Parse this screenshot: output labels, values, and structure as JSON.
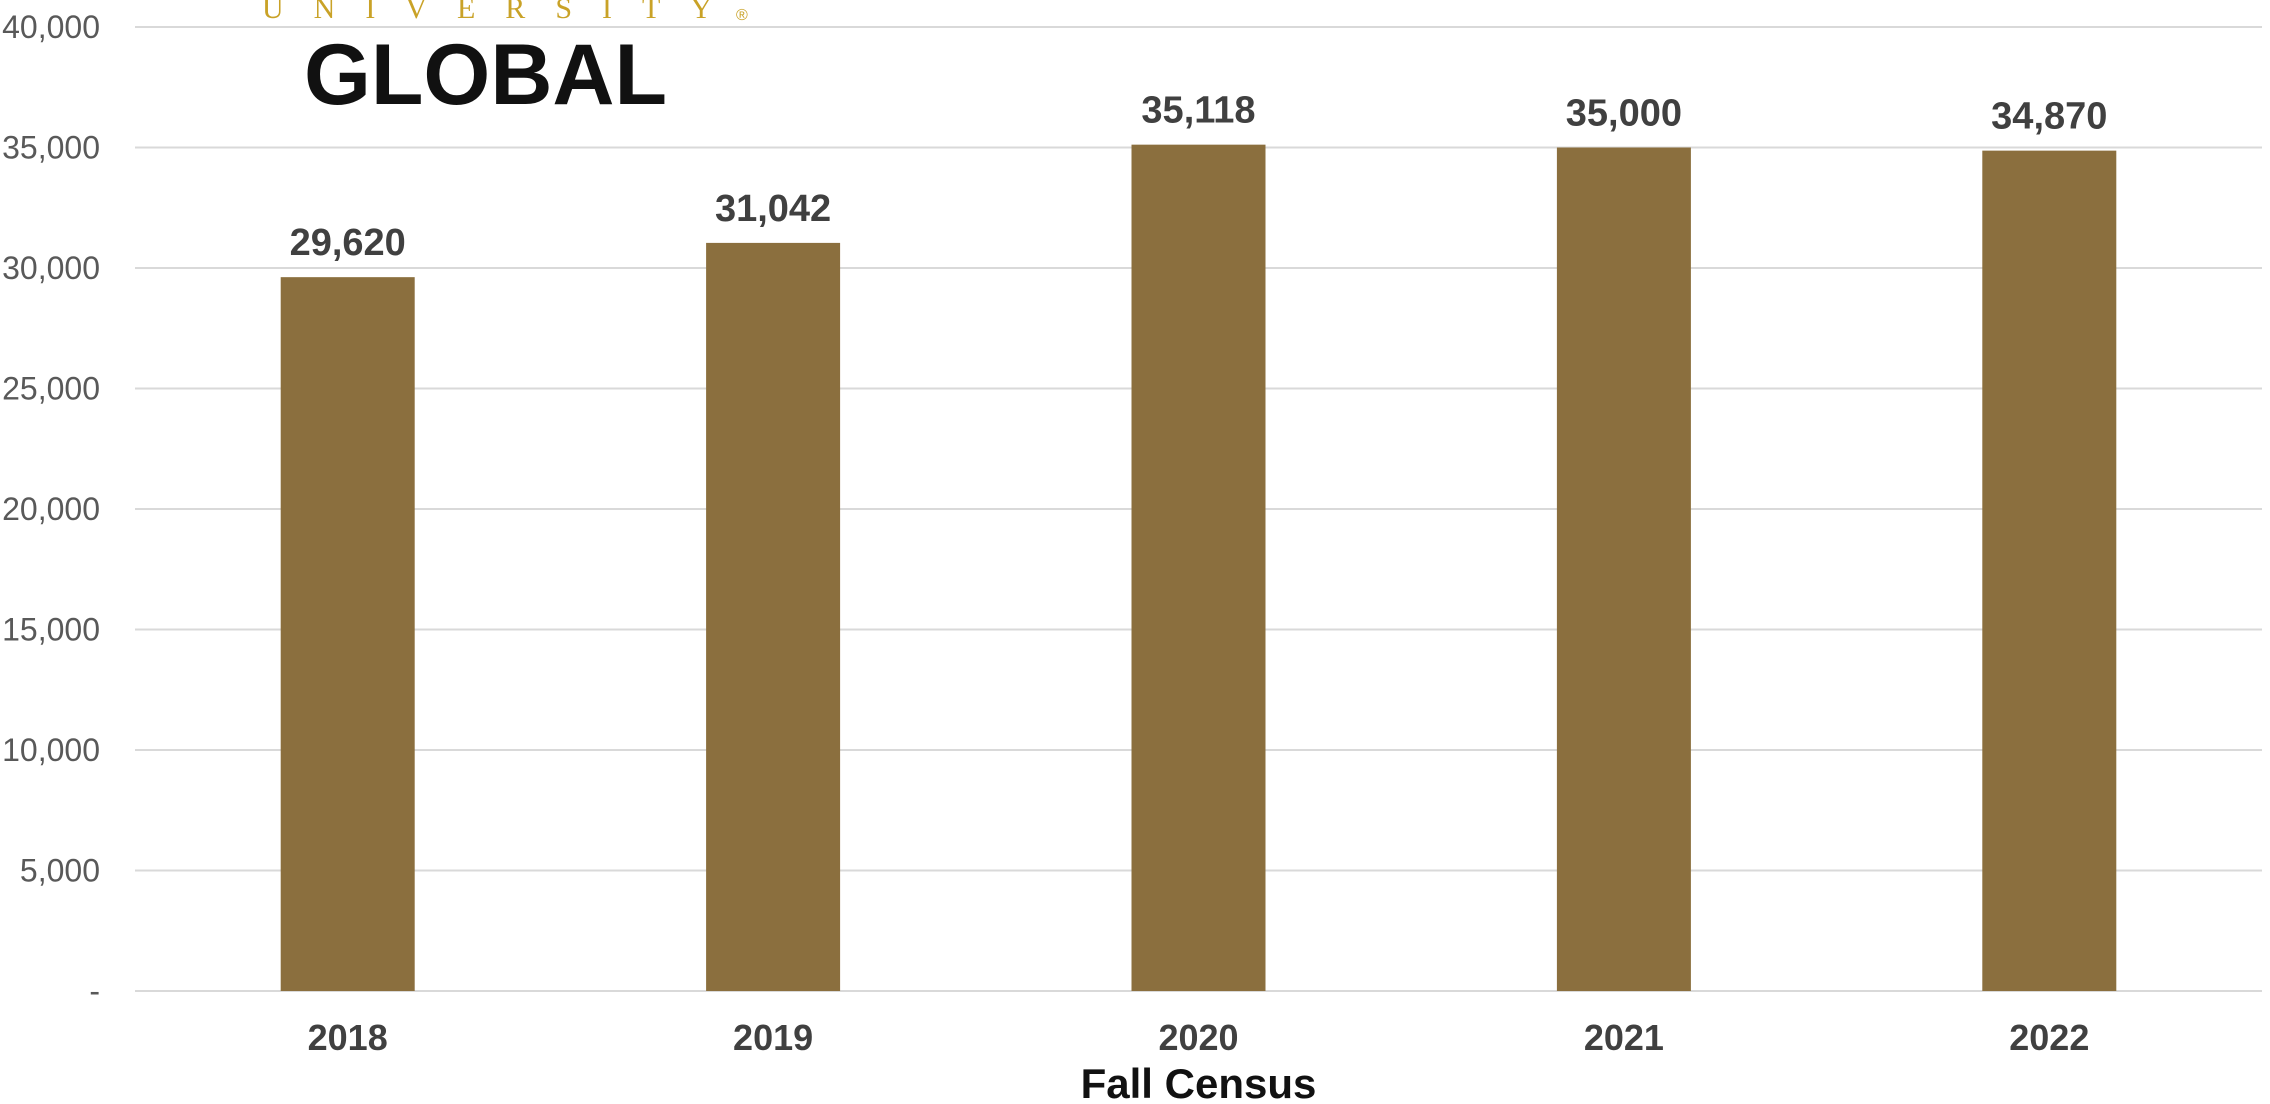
{
  "logo": {
    "top_text": "UNIVERSITY",
    "main_text": "GLOBAL",
    "registered_mark": "®",
    "gold_color": "#c9a227",
    "black_color": "#111111"
  },
  "chart_data": {
    "type": "bar",
    "categories": [
      "2018",
      "2019",
      "2020",
      "2021",
      "2022"
    ],
    "values": [
      29620,
      31042,
      35118,
      35000,
      34870
    ],
    "data_labels": [
      "29,620",
      "31,042",
      "35,118",
      "35,000",
      "34,870"
    ],
    "title": "",
    "xlabel": "Fall Census",
    "ylabel": "",
    "ylim": [
      0,
      40000
    ],
    "yticks": [
      0,
      5000,
      10000,
      15000,
      20000,
      25000,
      30000,
      35000,
      40000
    ],
    "ytick_labels": [
      "-",
      "5,000",
      "10,000",
      "15,000",
      "20,000",
      "25,000",
      "30,000",
      "35,000",
      "40,000"
    ],
    "grid": true,
    "legend": "none",
    "bar_color": "#8b6f3e",
    "grid_color": "#d9d9d9"
  }
}
